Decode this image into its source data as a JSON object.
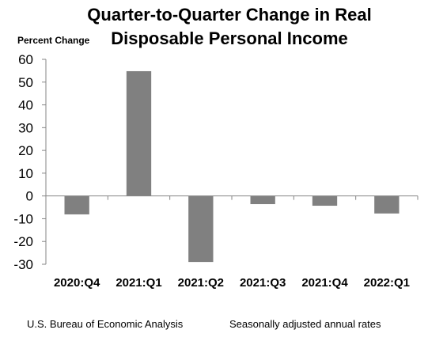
{
  "chart_data": {
    "type": "bar",
    "title": "Quarter-to-Quarter Change in Real Disposable Personal Income",
    "title_lines": [
      "Quarter-to-Quarter Change in Real",
      "Disposable Personal Income"
    ],
    "ylabel": "Percent Change",
    "xlabel": "",
    "categories": [
      "2020:Q4",
      "2021:Q1",
      "2021:Q2",
      "2021:Q3",
      "2021:Q4",
      "2022:Q1"
    ],
    "values": [
      -8.1,
      54.8,
      -29.0,
      -3.6,
      -4.3,
      -7.7
    ],
    "ylim": [
      -30,
      60
    ],
    "yticks": [
      60,
      50,
      40,
      30,
      20,
      10,
      0,
      -10,
      -20,
      -30
    ],
    "grid": false,
    "legend": "none",
    "bar_color": "#808080"
  },
  "footer": {
    "source": "U.S. Bureau of Economic Analysis",
    "note": "Seasonally adjusted annual rates"
  }
}
